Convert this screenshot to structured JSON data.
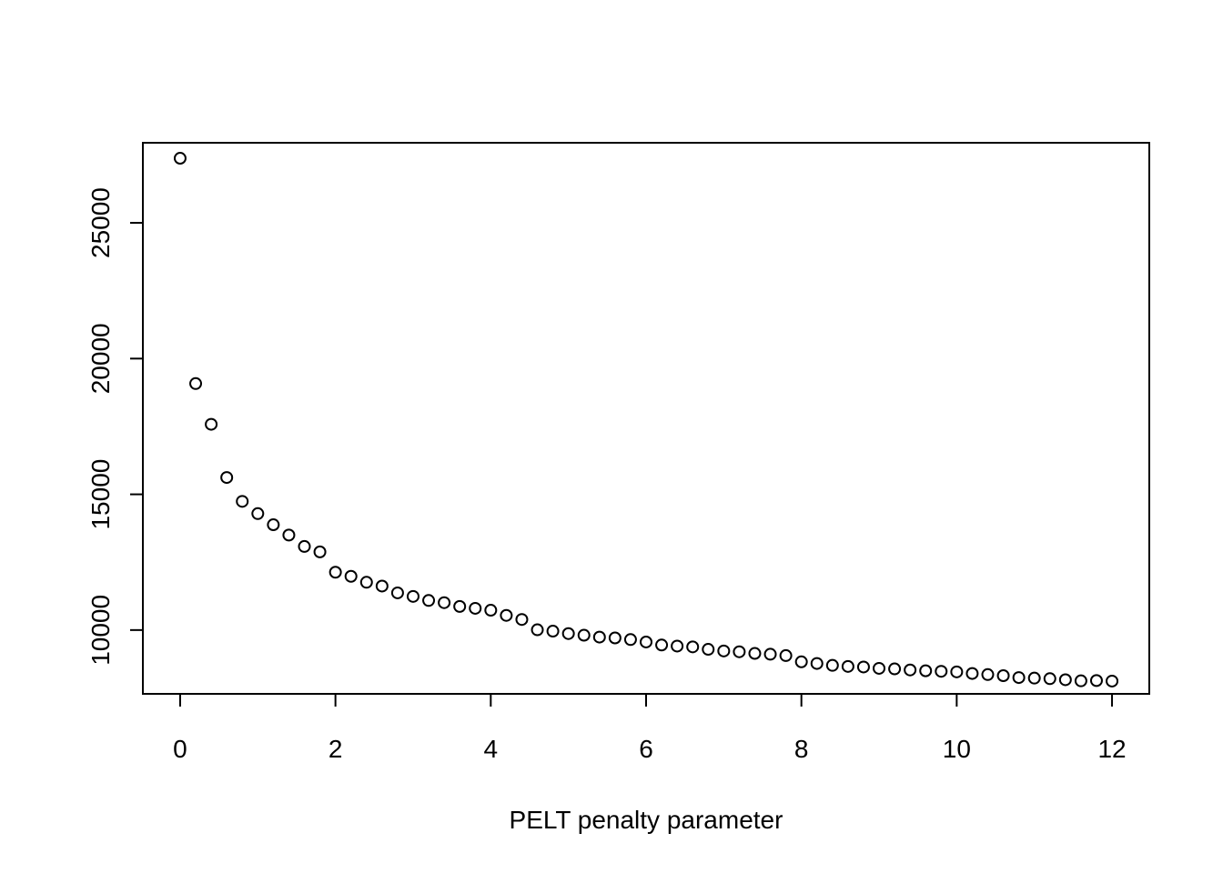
{
  "chart_data": {
    "type": "scatter",
    "title": "",
    "xlabel": "PELT penalty parameter",
    "ylabel": "",
    "xlim": [
      -0.48,
      12.48
    ],
    "ylim": [
      7650,
      27950
    ],
    "grid": false,
    "marker": "open-circle",
    "x_ticks": [
      0,
      2,
      4,
      6,
      8,
      10,
      12
    ],
    "y_ticks": [
      10000,
      15000,
      20000,
      25000
    ],
    "series": [
      {
        "x": [
          0,
          0.2,
          0.4,
          0.6,
          0.8,
          1.0,
          1.2,
          1.4,
          1.6,
          1.8,
          2.0,
          2.2,
          2.4,
          2.6,
          2.8,
          3.0,
          3.2,
          3.4,
          3.6,
          3.8,
          4.0,
          4.2,
          4.4,
          4.6,
          4.8,
          5.0,
          5.2,
          5.4,
          5.6,
          5.8,
          6.0,
          6.2,
          6.4,
          6.6,
          6.8,
          7.0,
          7.2,
          7.4,
          7.6,
          7.8,
          8.0,
          8.2,
          8.4,
          8.6,
          8.8,
          9.0,
          9.2,
          9.4,
          9.6,
          9.8,
          10.0,
          10.2,
          10.4,
          10.6,
          10.8,
          11.0,
          11.2,
          11.4,
          11.6,
          11.8,
          12.0
        ],
        "y": [
          27380,
          19080,
          17580,
          15620,
          14740,
          14290,
          13880,
          13500,
          13080,
          12880,
          12130,
          11980,
          11760,
          11620,
          11370,
          11240,
          11090,
          11010,
          10870,
          10800,
          10730,
          10540,
          10390,
          10010,
          9960,
          9870,
          9810,
          9740,
          9710,
          9650,
          9560,
          9450,
          9410,
          9380,
          9290,
          9230,
          9200,
          9140,
          9110,
          9060,
          8830,
          8770,
          8700,
          8660,
          8640,
          8590,
          8570,
          8530,
          8500,
          8480,
          8460,
          8400,
          8360,
          8320,
          8250,
          8230,
          8210,
          8170,
          8130,
          8140,
          8120
        ]
      }
    ]
  }
}
